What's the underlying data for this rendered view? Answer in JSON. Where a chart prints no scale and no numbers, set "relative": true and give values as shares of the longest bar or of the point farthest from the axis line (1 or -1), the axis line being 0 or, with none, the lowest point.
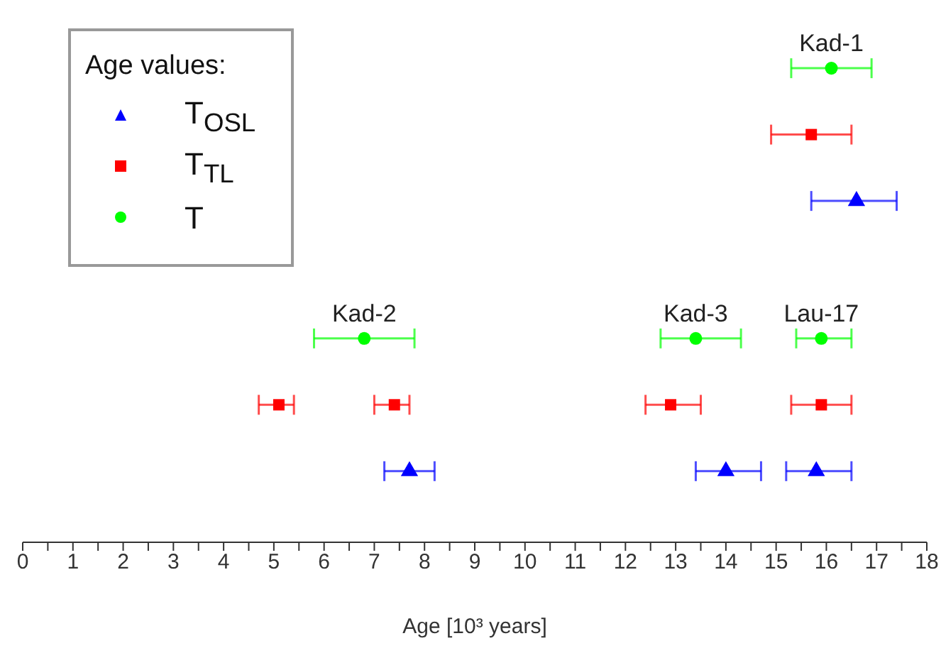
{
  "chart_data": {
    "type": "scatter",
    "relative": true,
    "xlabel": "Age [10³ years]",
    "legend_title": "Age values:",
    "legend": "top left",
    "grid": false,
    "xlim": [
      0,
      18
    ],
    "xticks": [
      0,
      {
        "value": 0.5,
        "label": null
      },
      1,
      {
        "value": 1.5,
        "label": null
      },
      2,
      {
        "value": 2.5,
        "label": null
      },
      3,
      {
        "value": 3.5,
        "label": null
      },
      4,
      {
        "value": 4.5,
        "label": null
      },
      5,
      {
        "value": 5.5,
        "label": null
      },
      6,
      {
        "value": 6.5,
        "label": null
      },
      7,
      {
        "value": 7.5,
        "label": null
      },
      8,
      {
        "value": 8.5,
        "label": null
      },
      9,
      {
        "value": 9.5,
        "label": null
      },
      10,
      {
        "value": 10.5,
        "label": null
      },
      11,
      {
        "value": 11.5,
        "label": null
      },
      12,
      {
        "value": 12.5,
        "label": null
      },
      13,
      {
        "value": 13.5,
        "label": null
      },
      14,
      {
        "value": 14.5,
        "label": null
      },
      15,
      {
        "value": 15.5,
        "label": null
      },
      16,
      {
        "value": 16.5,
        "label": null
      },
      17,
      {
        "value": 17.5,
        "label": null
      },
      18
    ],
    "series": [
      {
        "name": "T$_{OSL}$",
        "color": "#0000ff",
        "marker": "triangle",
        "x": [
          16.6,
          7.7,
          14.0,
          15.8
        ],
        "values": [
          0.72,
          0.15,
          0.15,
          0.15
        ],
        "xerrors": [
          [
            15.7,
            17.4
          ],
          [
            7.2,
            8.2
          ],
          [
            13.4,
            14.7
          ],
          [
            15.2,
            16.5
          ]
        ]
      },
      {
        "name": "T$_{TL}$",
        "color": "#ff0000",
        "marker": "square",
        "x": [
          15.7,
          5.1,
          7.4,
          12.9,
          15.9
        ],
        "values": [
          0.86,
          0.29,
          0.29,
          0.29,
          0.29
        ],
        "xerrors": [
          [
            14.9,
            16.5
          ],
          [
            4.7,
            5.4
          ],
          [
            7.0,
            7.7
          ],
          [
            12.4,
            13.5
          ],
          [
            15.3,
            16.5
          ]
        ]
      },
      {
        "name": "T",
        "color": "#00ff00",
        "marker": "circle",
        "x": [
          16.1,
          6.8,
          13.4,
          15.9
        ],
        "values": [
          1,
          0.43,
          0.43,
          0.43
        ],
        "xerrors": [
          [
            15.3,
            16.9
          ],
          [
            5.8,
            7.8
          ],
          [
            12.7,
            14.3
          ],
          [
            15.4,
            16.5
          ]
        ]
      }
    ],
    "annotations": [
      "Kad-1",
      "Kad-2",
      "Kad-3",
      "Lau-17"
    ]
  }
}
